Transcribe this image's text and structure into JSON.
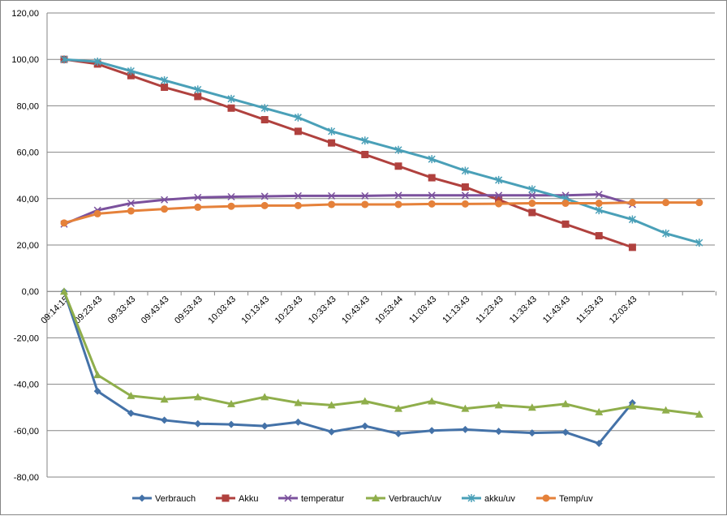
{
  "chart_data": {
    "type": "line",
    "categories": [
      "09:14:15",
      "09:23:43",
      "09:33:43",
      "09:43:43",
      "09:53:43",
      "10:03:43",
      "10:13:43",
      "10:23:43",
      "10:33:43",
      "10:43:43",
      "10:53:44",
      "11:03:43",
      "11:13:43",
      "11:23:43",
      "11:33:43",
      "11:43:43",
      "11:53:43",
      "12:03:43",
      "",
      ""
    ],
    "ylim": [
      -80,
      120
    ],
    "yticks": [
      "120,00",
      "100,00",
      "80,00",
      "60,00",
      "40,00",
      "20,00",
      "0,00",
      "-20,00",
      "-40,00",
      "-60,00",
      "-80,00"
    ],
    "grid": true,
    "legend_position": "bottom",
    "series": [
      {
        "name": "Verbrauch",
        "color": "#4472a8",
        "marker": "diamond",
        "values": [
          0,
          -43,
          -52.5,
          -55.5,
          -57,
          -57.3,
          -58,
          -56.3,
          -60.5,
          -58,
          -61.3,
          -60,
          -59.5,
          -60.3,
          -61,
          -60.7,
          -65.5,
          -48,
          null,
          null
        ]
      },
      {
        "name": "Akku",
        "color": "#b0413e",
        "marker": "square",
        "values": [
          100,
          98,
          93,
          88,
          84,
          79,
          74,
          69,
          64,
          59,
          54,
          49,
          45,
          39.5,
          34,
          29,
          24,
          19,
          null,
          null
        ]
      },
      {
        "name": "temperatur",
        "color": "#7b519d",
        "marker": "x",
        "values": [
          29,
          35,
          38,
          39.5,
          40.5,
          40.8,
          41,
          41.2,
          41.2,
          41.2,
          41.4,
          41.4,
          41.4,
          41.4,
          41.4,
          41.4,
          41.8,
          37.5,
          null,
          null
        ]
      },
      {
        "name": "Verbrauch/uv",
        "color": "#8fae4b",
        "marker": "triangle",
        "values": [
          0,
          -36,
          -45,
          -46.5,
          -45.5,
          -48.5,
          -45.5,
          -48,
          -49,
          -47.3,
          -50.5,
          -47.3,
          -50.5,
          -49,
          -50,
          -48.5,
          -52,
          -49.5,
          -51.2,
          -53
        ]
      },
      {
        "name": "akku/uv",
        "color": "#4aa0b8",
        "marker": "star",
        "values": [
          100,
          99,
          95,
          91,
          87,
          83,
          79,
          75,
          69,
          65,
          61,
          57,
          52,
          48,
          44,
          40,
          35,
          31,
          25,
          21
        ]
      },
      {
        "name": "Temp/uv",
        "color": "#e5813a",
        "marker": "circle",
        "values": [
          29.5,
          33.5,
          34.7,
          35.5,
          36.3,
          36.7,
          37,
          37,
          37.5,
          37.5,
          37.5,
          37.7,
          37.7,
          37.8,
          38,
          38,
          38,
          38.3,
          38.3,
          38.3
        ]
      }
    ]
  }
}
